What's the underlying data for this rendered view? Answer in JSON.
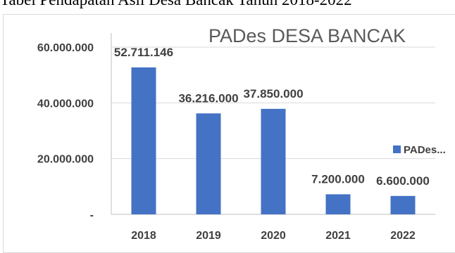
{
  "page": {
    "top_text": "Tabel Pendapatan Asli Desa Bancak Tahun 2018-2022"
  },
  "chart_data": {
    "type": "bar",
    "title": "PADes DESA BANCAK",
    "categories": [
      "2018",
      "2019",
      "2020",
      "2021",
      "2022"
    ],
    "series": [
      {
        "name": "PADes...",
        "values": [
          52711146,
          36216000,
          37850000,
          7200000,
          6600000
        ],
        "data_labels": [
          "52.711.146",
          "36.216.000",
          "37.850.000",
          "7.200.000",
          "6.600.000"
        ],
        "color": "#4472c4"
      }
    ],
    "ylim": [
      0,
      60000000
    ],
    "y_ticks": [
      0,
      20000000,
      40000000,
      60000000
    ],
    "y_tick_labels": [
      "-",
      "20.000.000",
      "40.000.000",
      "60.000.000"
    ],
    "grid": true,
    "gridline_color": "#d9d9d9",
    "axis_color": "#bfbfbf",
    "legend_position": "right"
  }
}
